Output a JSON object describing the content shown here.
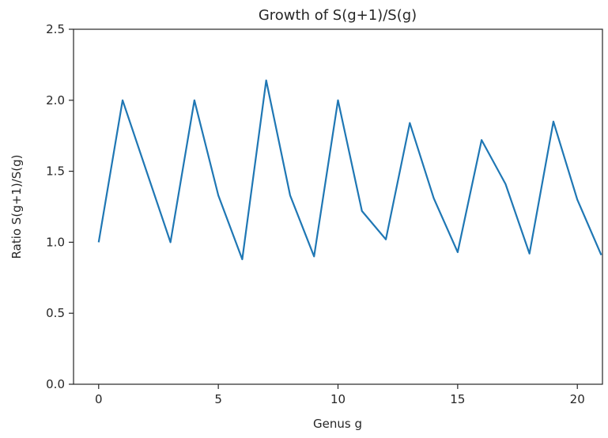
{
  "chart_data": {
    "type": "line",
    "title": "Growth of S(g+1)/S(g)",
    "xlabel": "Genus g",
    "ylabel": "Ratio S(g+1)/S(g)",
    "xlim": [
      -1.05,
      21.05
    ],
    "ylim": [
      0.0,
      2.5
    ],
    "xticks": [
      0,
      5,
      10,
      15,
      20
    ],
    "xtick_labels": [
      "0",
      "5",
      "10",
      "15",
      "20"
    ],
    "yticks": [
      0.0,
      0.5,
      1.0,
      1.5,
      2.0,
      2.5
    ],
    "ytick_labels": [
      "0.0",
      "0.5",
      "1.0",
      "1.5",
      "2.0",
      "2.5"
    ],
    "grid": false,
    "series": [
      {
        "color": "#1f77b4",
        "x": [
          0,
          1,
          2,
          3,
          4,
          5,
          6,
          7,
          8,
          9,
          10,
          11,
          12,
          13,
          14,
          15,
          16,
          17,
          18,
          19,
          20,
          21
        ],
        "y": [
          1.0,
          2.0,
          1.5,
          1.0,
          2.0,
          1.33,
          0.88,
          2.14,
          1.33,
          0.9,
          2.0,
          1.22,
          1.02,
          1.84,
          1.31,
          0.93,
          1.72,
          1.41,
          0.92,
          1.85,
          1.3,
          0.91
        ]
      }
    ]
  }
}
